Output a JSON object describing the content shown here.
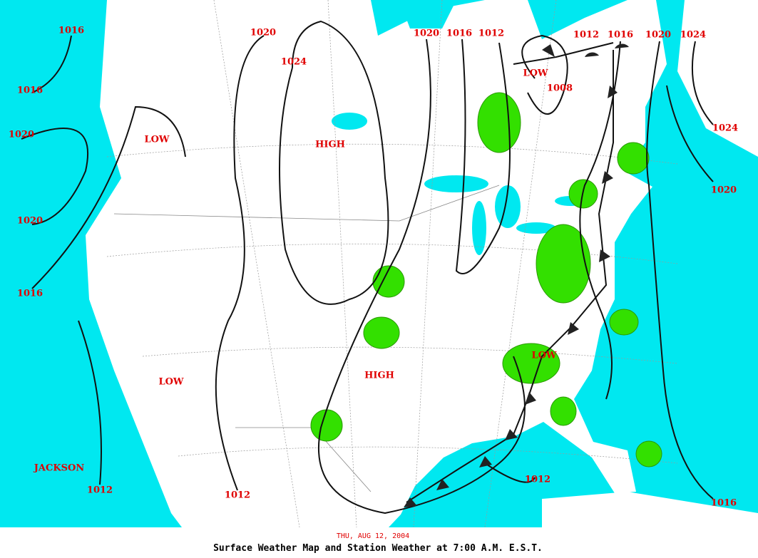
{
  "map": {
    "isobar_labels": [
      "1016",
      "1016",
      "1020",
      "1020",
      "1016",
      "1012",
      "1012",
      "1020",
      "1024",
      "1020",
      "1016",
      "1012",
      "1008",
      "1012",
      "1016",
      "1020",
      "1024",
      "1024",
      "1020",
      "1016",
      "1012"
    ],
    "centers": [
      "LOW",
      "HIGH",
      "LOW",
      "HIGH",
      "LOW",
      "LOW"
    ],
    "places": [
      "JACKSON"
    ],
    "date": "THU, AUG 12, 2004",
    "title": "Surface Weather Map and Station Weather at 7:00 A.M. E.S.T."
  }
}
